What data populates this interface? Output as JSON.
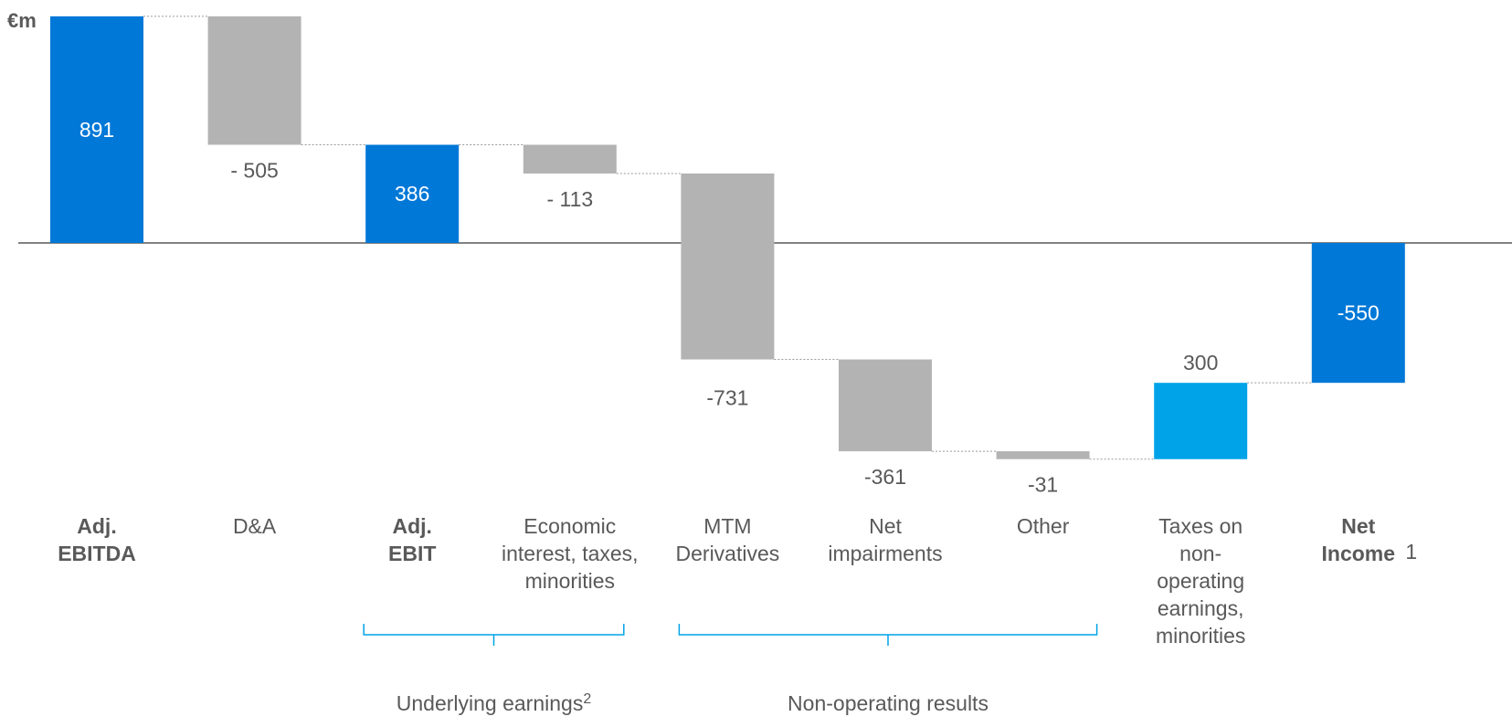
{
  "chart_data": {
    "type": "waterfall",
    "unit_label": "€m",
    "steps": [
      {
        "category_lines": [
          "Adj.",
          "EBITDA"
        ],
        "bold": true,
        "kind": "total",
        "value": 891,
        "label": "891",
        "color": "#0078D7"
      },
      {
        "category_lines": [
          "D&A"
        ],
        "bold": false,
        "kind": "delta",
        "value": -505,
        "label": "- 505",
        "color": "#B3B3B3"
      },
      {
        "category_lines": [
          "Adj.",
          "EBIT"
        ],
        "bold": true,
        "kind": "total",
        "value": 386,
        "label": "386",
        "color": "#0078D7"
      },
      {
        "category_lines": [
          "Economic",
          "interest, taxes,",
          "minorities"
        ],
        "bold": false,
        "kind": "delta",
        "value": -113,
        "label": "- 113",
        "color": "#B3B3B3"
      },
      {
        "category_lines": [
          "MTM",
          "Derivatives"
        ],
        "bold": false,
        "kind": "delta",
        "value": -731,
        "label": "-731",
        "color": "#B3B3B3"
      },
      {
        "category_lines": [
          "Net",
          "impairments"
        ],
        "bold": false,
        "kind": "delta",
        "value": -361,
        "label": "-361",
        "color": "#B3B3B3"
      },
      {
        "category_lines": [
          "Other"
        ],
        "bold": false,
        "kind": "delta",
        "value": -31,
        "label": "-31",
        "color": "#B3B3B3"
      },
      {
        "category_lines": [
          "Taxes on",
          "non-",
          "operating",
          "earnings,",
          "minorities"
        ],
        "bold": false,
        "kind": "delta",
        "value": 300,
        "label": "300",
        "color": "#00A3E8"
      },
      {
        "category_lines": [
          "Net",
          "Income"
        ],
        "bold": true,
        "footnote": "1",
        "kind": "total",
        "value": -550,
        "label": "-550",
        "color": "#0078D7"
      }
    ],
    "groups": [
      {
        "label": "Underlying earnings",
        "superscript": "2",
        "from_step": 2,
        "to_step": 3
      },
      {
        "label": "Non-operating results",
        "superscript": "",
        "from_step": 4,
        "to_step": 6
      }
    ],
    "colors": {
      "total": "#0078D7",
      "negative": "#B3B3B3",
      "positive": "#00A3E8",
      "bracket": "#00A3E8",
      "axis": "#595959",
      "text": "#595959"
    }
  }
}
